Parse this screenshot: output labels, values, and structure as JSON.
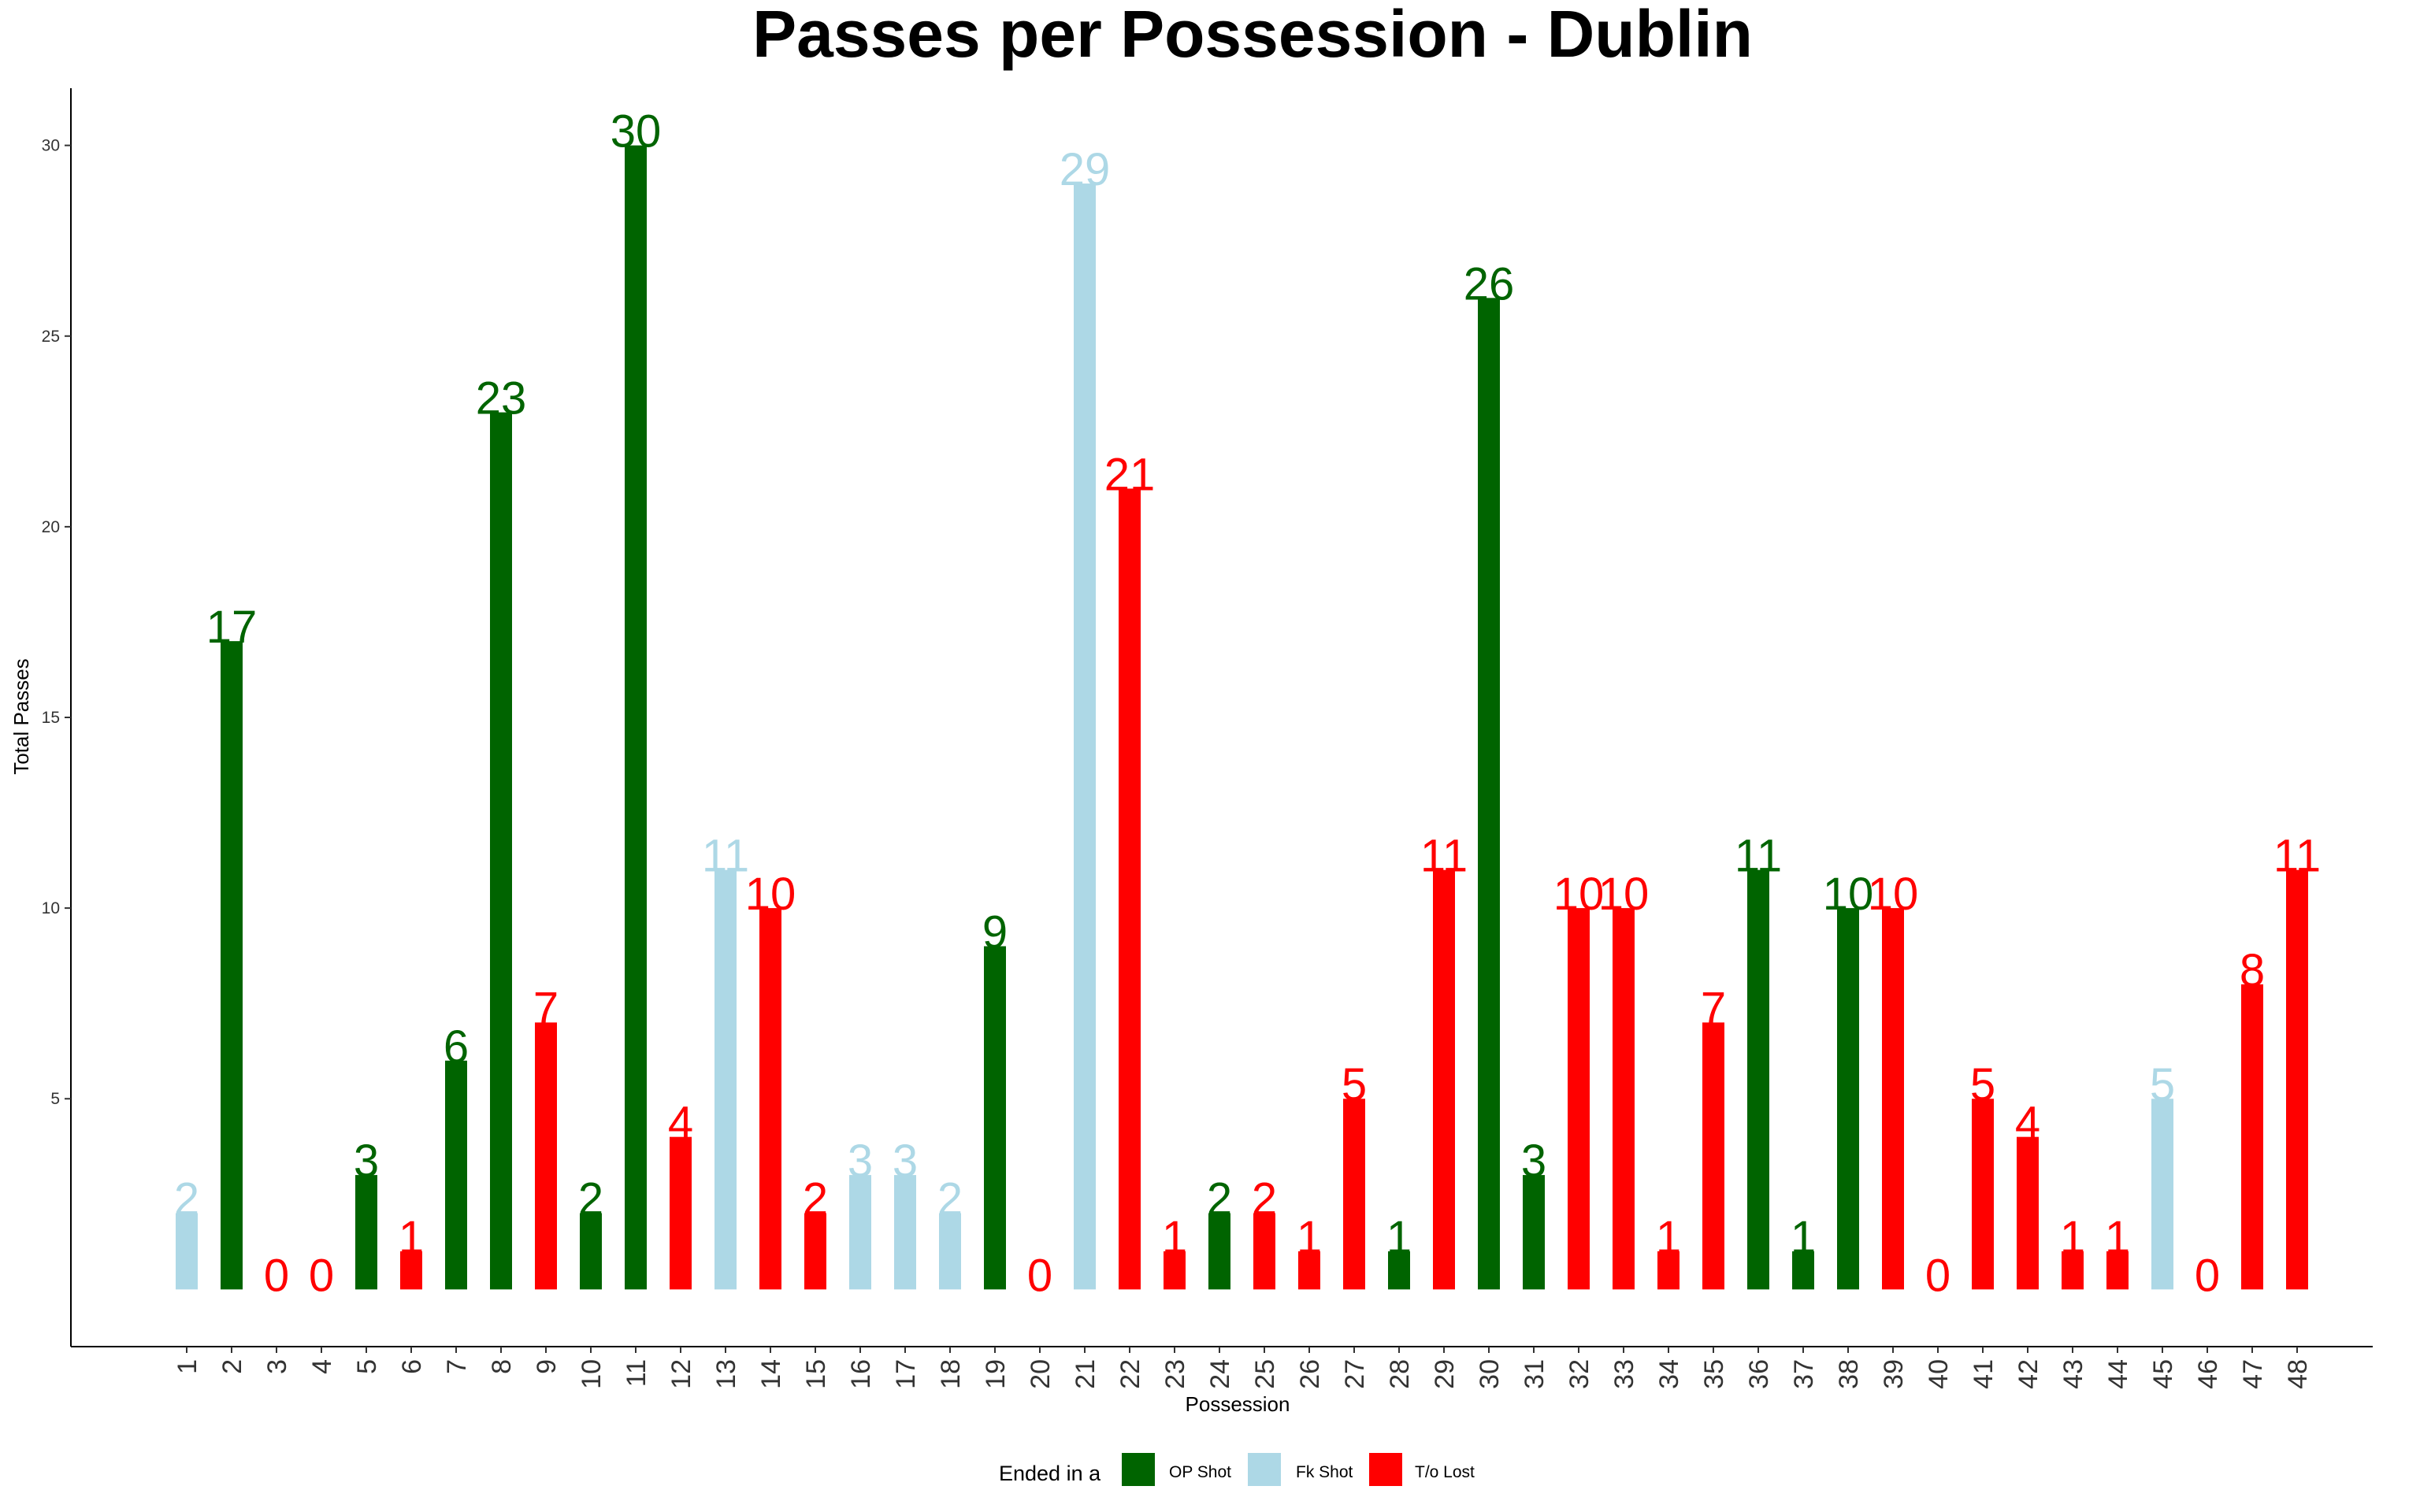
{
  "chart_data": {
    "type": "bar",
    "title": "Passes per Possession - Dublin",
    "xlabel": "Possession",
    "ylabel": "Total Passes",
    "ylim": [
      -1.5,
      31.5
    ],
    "yticks": [
      5,
      10,
      15,
      20,
      25,
      30
    ],
    "grid": false,
    "legend_position": "bottom",
    "legend_title": "Ended in a",
    "legend": [
      {
        "key": "op",
        "name": "OP Shot",
        "color": "#006400"
      },
      {
        "key": "fk",
        "name": "Fk Shot",
        "color": "#ADD8E6"
      },
      {
        "key": "to",
        "name": "T/o Lost",
        "color": "#FF0000"
      }
    ],
    "categories": [
      "1",
      "2",
      "3",
      "4",
      "5",
      "6",
      "7",
      "8",
      "9",
      "10",
      "11",
      "12",
      "13",
      "14",
      "15",
      "16",
      "17",
      "18",
      "19",
      "20",
      "21",
      "22",
      "23",
      "24",
      "25",
      "26",
      "27",
      "28",
      "29",
      "30",
      "31",
      "32",
      "33",
      "34",
      "35",
      "36",
      "37",
      "38",
      "39",
      "40",
      "41",
      "42",
      "43",
      "44",
      "45",
      "46",
      "47",
      "48"
    ],
    "values": [
      2,
      17,
      0,
      0,
      3,
      1,
      6,
      23,
      7,
      2,
      30,
      4,
      11,
      10,
      2,
      3,
      3,
      2,
      9,
      0,
      29,
      21,
      1,
      2,
      2,
      1,
      5,
      1,
      11,
      26,
      3,
      10,
      10,
      1,
      7,
      11,
      1,
      10,
      10,
      0,
      5,
      4,
      1,
      1,
      5,
      0,
      8,
      11
    ],
    "outcome": [
      "fk",
      "op",
      "to",
      "to",
      "op",
      "to",
      "op",
      "op",
      "to",
      "op",
      "op",
      "to",
      "fk",
      "to",
      "to",
      "fk",
      "fk",
      "fk",
      "op",
      "to",
      "fk",
      "to",
      "to",
      "op",
      "to",
      "to",
      "to",
      "op",
      "to",
      "op",
      "op",
      "to",
      "to",
      "to",
      "to",
      "op",
      "op",
      "op",
      "to",
      "to",
      "to",
      "to",
      "to",
      "to",
      "fk",
      "to",
      "to",
      "to"
    ]
  }
}
